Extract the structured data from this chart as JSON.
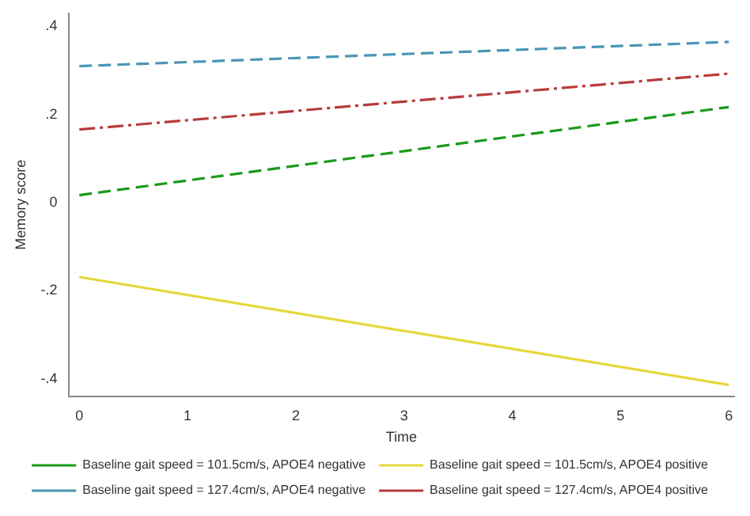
{
  "chart_data": {
    "type": "line",
    "xlabel": "Time",
    "ylabel": "Memory score",
    "x": [
      0,
      6
    ],
    "series": [
      {
        "name": "Baseline gait speed = 101.5cm/s, APOE4 negative",
        "color": "#1a9a1a",
        "values": [
          0.017,
          0.217
        ],
        "line_style": "dashed"
      },
      {
        "name": "Baseline gait speed = 101.5cm/s, APOE4 positive",
        "color": "#e6d83a",
        "values": [
          -0.169,
          -0.414
        ],
        "line_style": "solid"
      },
      {
        "name": "Baseline gait speed = 127.4cm/s, APOE4 negative",
        "color": "#4a96b4",
        "values": [
          0.31,
          0.365
        ],
        "line_style": "dashed"
      },
      {
        "name": "Baseline gait speed = 127.4cm/s, APOE4 positive",
        "color": "#b83a3a",
        "values": [
          0.166,
          0.293
        ],
        "line_style": "dashdot"
      }
    ],
    "xlim": [
      -0.1,
      6.05
    ],
    "xticks": [
      0,
      1,
      2,
      3,
      4,
      5,
      6
    ],
    "ylim": [
      -0.44,
      0.43
    ],
    "yticks": [
      {
        "value": -0.4,
        "label": "-.4"
      },
      {
        "value": -0.2,
        "label": "-.2"
      },
      {
        "value": 0,
        "label": "0"
      },
      {
        "value": 0.2,
        "label": ".2"
      },
      {
        "value": 0.4,
        "label": ".4"
      }
    ],
    "grid": false,
    "legend": "bottom",
    "marker": "none"
  }
}
